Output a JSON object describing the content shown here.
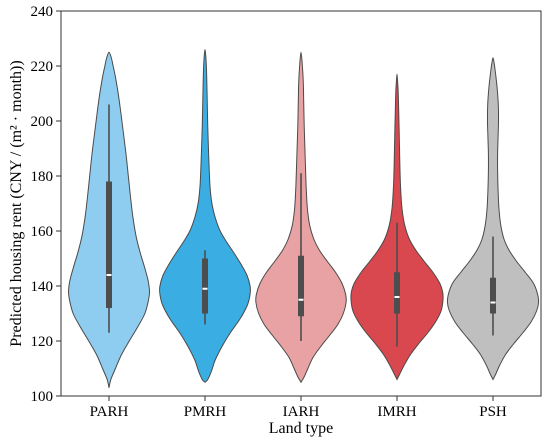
{
  "chart_data": {
    "type": "violin",
    "xlabel": "Land type",
    "ylabel": "Predicted housing rent (CNY / (m² · month))",
    "ylim": [
      100,
      240
    ],
    "yticks": [
      100,
      120,
      140,
      160,
      180,
      200,
      220,
      240
    ],
    "grid": false,
    "categories": [
      "PARH",
      "PMRH",
      "IARH",
      "IMRH",
      "PSH"
    ],
    "colors": [
      "#8ecdf0",
      "#3aaee3",
      "#e8a2a3",
      "#d8484e",
      "#bfbfbf"
    ],
    "series": [
      {
        "category": "PARH",
        "range": [
          103,
          225
        ],
        "whisker": [
          123,
          206
        ],
        "q1": 132,
        "median": 144,
        "q3": 178,
        "density": [
          [
            103,
            0.0
          ],
          [
            106,
            0.04
          ],
          [
            110,
            0.14
          ],
          [
            115,
            0.27
          ],
          [
            120,
            0.44
          ],
          [
            125,
            0.62
          ],
          [
            130,
            0.78
          ],
          [
            135,
            0.86
          ],
          [
            138,
            0.88
          ],
          [
            142,
            0.85
          ],
          [
            147,
            0.77
          ],
          [
            152,
            0.68
          ],
          [
            158,
            0.59
          ],
          [
            165,
            0.52
          ],
          [
            172,
            0.47
          ],
          [
            180,
            0.42
          ],
          [
            188,
            0.37
          ],
          [
            196,
            0.31
          ],
          [
            204,
            0.25
          ],
          [
            210,
            0.2
          ],
          [
            216,
            0.14
          ],
          [
            220,
            0.09
          ],
          [
            223,
            0.05
          ],
          [
            225,
            0.0
          ]
        ]
      },
      {
        "category": "PMRH",
        "range": [
          105,
          226
        ],
        "whisker": [
          126,
          153
        ],
        "q1": 130,
        "median": 139,
        "q3": 150,
        "density": [
          [
            105,
            0.0
          ],
          [
            106,
            0.06
          ],
          [
            109,
            0.14
          ],
          [
            113,
            0.22
          ],
          [
            118,
            0.37
          ],
          [
            123,
            0.55
          ],
          [
            128,
            0.76
          ],
          [
            133,
            0.92
          ],
          [
            137,
            0.98
          ],
          [
            140,
            0.98
          ],
          [
            144,
            0.91
          ],
          [
            148,
            0.78
          ],
          [
            152,
            0.63
          ],
          [
            156,
            0.47
          ],
          [
            160,
            0.33
          ],
          [
            165,
            0.22
          ],
          [
            170,
            0.15
          ],
          [
            176,
            0.11
          ],
          [
            183,
            0.09
          ],
          [
            190,
            0.075
          ],
          [
            198,
            0.06
          ],
          [
            206,
            0.05
          ],
          [
            214,
            0.04
          ],
          [
            220,
            0.03
          ],
          [
            224,
            0.015
          ],
          [
            226,
            0.0
          ]
        ]
      },
      {
        "category": "IARH",
        "range": [
          105,
          225
        ],
        "whisker": [
          120,
          181
        ],
        "q1": 129,
        "median": 135,
        "q3": 151,
        "density": [
          [
            105,
            0.0
          ],
          [
            107,
            0.07
          ],
          [
            110,
            0.15
          ],
          [
            114,
            0.26
          ],
          [
            118,
            0.43
          ],
          [
            122,
            0.62
          ],
          [
            126,
            0.8
          ],
          [
            130,
            0.92
          ],
          [
            134,
            0.98
          ],
          [
            137,
            0.97
          ],
          [
            141,
            0.89
          ],
          [
            145,
            0.75
          ],
          [
            149,
            0.57
          ],
          [
            153,
            0.4
          ],
          [
            157,
            0.28
          ],
          [
            162,
            0.19
          ],
          [
            168,
            0.14
          ],
          [
            175,
            0.115
          ],
          [
            182,
            0.1
          ],
          [
            190,
            0.085
          ],
          [
            198,
            0.07
          ],
          [
            206,
            0.06
          ],
          [
            214,
            0.05
          ],
          [
            220,
            0.03
          ],
          [
            225,
            0.0
          ]
        ]
      },
      {
        "category": "IMRH",
        "range": [
          106,
          217
        ],
        "whisker": [
          118,
          163
        ],
        "q1": 130,
        "median": 136,
        "q3": 145,
        "density": [
          [
            106,
            0.0
          ],
          [
            108,
            0.06
          ],
          [
            111,
            0.15
          ],
          [
            115,
            0.29
          ],
          [
            119,
            0.47
          ],
          [
            123,
            0.67
          ],
          [
            127,
            0.84
          ],
          [
            131,
            0.96
          ],
          [
            135,
            1.0
          ],
          [
            138,
            0.99
          ],
          [
            141,
            0.93
          ],
          [
            145,
            0.78
          ],
          [
            149,
            0.59
          ],
          [
            153,
            0.41
          ],
          [
            157,
            0.27
          ],
          [
            162,
            0.17
          ],
          [
            168,
            0.11
          ],
          [
            175,
            0.08
          ],
          [
            182,
            0.065
          ],
          [
            190,
            0.055
          ],
          [
            198,
            0.045
          ],
          [
            205,
            0.035
          ],
          [
            211,
            0.025
          ],
          [
            215,
            0.01
          ],
          [
            217,
            0.0
          ]
        ]
      },
      {
        "category": "PSH",
        "range": [
          106,
          223
        ],
        "whisker": [
          122,
          158
        ],
        "q1": 130,
        "median": 134,
        "q3": 143,
        "density": [
          [
            106,
            0.0
          ],
          [
            108,
            0.06
          ],
          [
            111,
            0.14
          ],
          [
            115,
            0.27
          ],
          [
            119,
            0.45
          ],
          [
            123,
            0.65
          ],
          [
            127,
            0.83
          ],
          [
            131,
            0.95
          ],
          [
            134,
            0.99
          ],
          [
            137,
            0.97
          ],
          [
            141,
            0.88
          ],
          [
            145,
            0.7
          ],
          [
            149,
            0.51
          ],
          [
            153,
            0.35
          ],
          [
            157,
            0.24
          ],
          [
            162,
            0.17
          ],
          [
            168,
            0.13
          ],
          [
            175,
            0.11
          ],
          [
            182,
            0.1
          ],
          [
            188,
            0.1
          ],
          [
            194,
            0.11
          ],
          [
            200,
            0.12
          ],
          [
            206,
            0.115
          ],
          [
            212,
            0.09
          ],
          [
            218,
            0.05
          ],
          [
            221,
            0.025
          ],
          [
            223,
            0.0
          ]
        ]
      }
    ]
  }
}
